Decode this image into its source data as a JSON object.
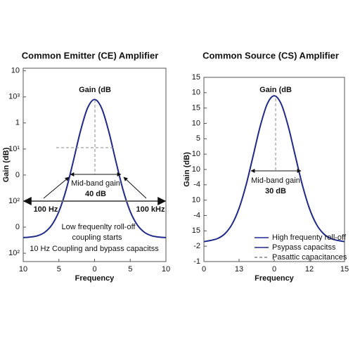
{
  "chart_data": [
    {
      "type": "line",
      "title": "Common Emitter (CE) Amplifier",
      "xlabel": "Frequency",
      "ylabel": "Gain (dB)",
      "x": [
        -10,
        -9,
        -8,
        -7,
        -6,
        -5,
        -4,
        -3,
        -2,
        -1,
        0,
        1,
        2,
        3,
        4,
        5,
        6,
        7,
        8,
        9,
        10
      ],
      "series": [
        {
          "name": "Gain",
          "color": "#1f2a8a",
          "values": [
            0.6,
            0.62,
            0.67,
            0.8,
            1.08,
            1.6,
            2.42,
            3.51,
            4.66,
            5.56,
            5.9,
            5.56,
            4.66,
            3.51,
            2.42,
            1.6,
            1.08,
            0.8,
            0.67,
            0.62,
            0.6
          ]
        }
      ],
      "xlim": [
        -10,
        10
      ],
      "xticks": [
        {
          "value": -10,
          "label": "10"
        },
        {
          "value": -5,
          "label": "5"
        },
        0,
        5,
        10
      ],
      "ylim": [
        -0.32,
        7.1
      ],
      "yticks": [
        {
          "value": 0,
          "label": "10²"
        },
        {
          "value": 1,
          "label": "0"
        },
        {
          "value": 2,
          "label": "10²"
        },
        {
          "value": 3,
          "label": "0"
        },
        {
          "value": 4,
          "label": "10¹"
        },
        {
          "value": 5,
          "label": "1"
        },
        {
          "value": 6,
          "label": "10³"
        },
        {
          "value": 7,
          "label": "10"
        }
      ],
      "annotations": [
        "Gain (dB",
        "Mid-band gain",
        "40 dB",
        "100 Hz",
        "100 kHz",
        "Low frequenlty roll-off",
        "coupling starts",
        "10 Hz Coupling and bypass capacitss"
      ]
    },
    {
      "type": "line",
      "title": "Common Source (CS) Amplifier",
      "xlabel": "Frequency",
      "ylabel": "Gain (dB)",
      "x": [
        -10,
        -9,
        -8,
        -7,
        -6,
        -5,
        -4,
        -3,
        -2,
        -1,
        0,
        1,
        2,
        3,
        4,
        5,
        6,
        7,
        8,
        9,
        10
      ],
      "series": [
        {
          "name": "High frequenty roll-off",
          "color": "#1f2a8a",
          "values": [
            1.3,
            1.38,
            1.51,
            1.82,
            2.43,
            3.47,
            4.99,
            6.88,
            8.8,
            10.26,
            10.8,
            10.26,
            8.8,
            6.88,
            4.99,
            3.47,
            2.43,
            1.82,
            1.51,
            1.38,
            1.3
          ]
        }
      ],
      "xlim": [
        -10,
        10
      ],
      "xticks": [
        {
          "value": -10,
          "label": "0"
        },
        {
          "value": -5,
          "label": "13"
        },
        0,
        {
          "value": 5,
          "label": "12"
        },
        {
          "value": 10,
          "label": "15"
        }
      ],
      "ylim": [
        0,
        12
      ],
      "yticks": [
        {
          "value": 0,
          "label": "-1"
        },
        {
          "value": 1,
          "label": "-2"
        },
        {
          "value": 2,
          "label": "15"
        },
        {
          "value": 3,
          "label": "-4"
        },
        {
          "value": 4,
          "label": "10"
        },
        {
          "value": 5,
          "label": "-4"
        },
        {
          "value": 6,
          "label": "10"
        },
        {
          "value": 7,
          "label": "10"
        },
        {
          "value": 8,
          "label": "5"
        },
        {
          "value": 9,
          "label": "10"
        },
        {
          "value": 10,
          "label": "15"
        },
        {
          "value": 11,
          "label": "10"
        },
        {
          "value": 12,
          "label": "15"
        }
      ],
      "legend_entries": [
        "High frequenty roll-off",
        "Psypass capacitss",
        "Pasattic capacitances"
      ],
      "annotations": [
        "Gain (dB",
        "Mid-band gain",
        "30 dB"
      ]
    }
  ]
}
